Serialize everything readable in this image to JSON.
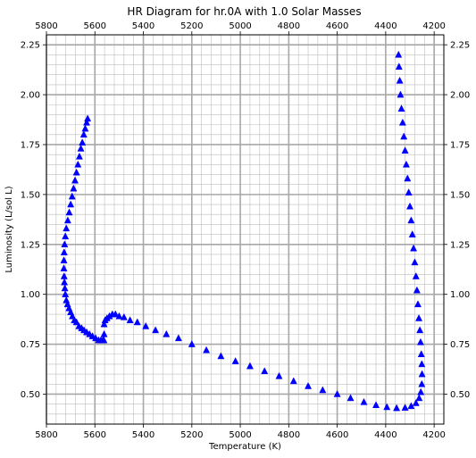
{
  "chart_data": {
    "type": "scatter",
    "title": "HR Diagram for hr.0A with 1.0 Solar Masses",
    "xlabel": "Temperature (K)",
    "ylabel": "Luminosity (L/sol L)",
    "xlim": [
      5800,
      4160
    ],
    "ylim": [
      0.35,
      2.3
    ],
    "x_ticks": [
      5800,
      5600,
      5400,
      5200,
      5000,
      4800,
      4600,
      4400,
      4200
    ],
    "x_tick_labels": [
      "5800",
      "5600",
      "5400",
      "5200",
      "5000",
      "4800",
      "4600",
      "4400",
      "4200"
    ],
    "y_ticks": [
      0.5,
      0.75,
      1.0,
      1.25,
      1.5,
      1.75,
      2.0,
      2.25
    ],
    "y_tick_labels": [
      "0.50",
      "0.75",
      "1.00",
      "1.25",
      "1.50",
      "1.75",
      "2.00",
      "2.25"
    ],
    "grid": true,
    "minor_grid": true,
    "marker": "triangle-up",
    "marker_color": "#0000ff",
    "series": [
      {
        "x": [
          5630,
          5634,
          5640,
          5646,
          5652,
          5658,
          5664,
          5670,
          5676,
          5682,
          5688,
          5694,
          5700,
          5706,
          5712,
          5718,
          5722,
          5725,
          5727,
          5728,
          5728,
          5727,
          5726,
          5724,
          5722,
          5718,
          5713,
          5707,
          5700,
          5693,
          5685,
          5676,
          5666,
          5655,
          5645,
          5634,
          5622,
          5610,
          5597,
          5585,
          5575,
          5567,
          5563,
          5562,
          5562,
          5558,
          5550,
          5540,
          5528,
          5515,
          5500,
          5480,
          5455,
          5425,
          5390,
          5350,
          5305,
          5255,
          5200,
          5140,
          5080,
          5020,
          4960,
          4900,
          4840,
          4780,
          4720,
          4660,
          4600,
          4545,
          4490,
          4440,
          4395,
          4355,
          4320,
          4295,
          4275,
          4262,
          4255,
          4251,
          4250,
          4251,
          4253,
          4256,
          4259,
          4263,
          4267,
          4271,
          4275,
          4280,
          4285,
          4290,
          4295,
          4300,
          4305,
          4310,
          4315,
          4320,
          4325,
          4330,
          4335,
          4339,
          4342,
          4345,
          4347
        ],
        "y": [
          1.88,
          1.86,
          1.83,
          1.8,
          1.76,
          1.73,
          1.69,
          1.65,
          1.61,
          1.57,
          1.53,
          1.49,
          1.45,
          1.41,
          1.37,
          1.33,
          1.29,
          1.25,
          1.21,
          1.17,
          1.13,
          1.09,
          1.06,
          1.03,
          1.0,
          0.97,
          0.95,
          0.93,
          0.91,
          0.89,
          0.87,
          0.86,
          0.84,
          0.83,
          0.82,
          0.81,
          0.8,
          0.79,
          0.78,
          0.77,
          0.77,
          0.77,
          0.77,
          0.8,
          0.85,
          0.87,
          0.88,
          0.89,
          0.9,
          0.9,
          0.89,
          0.885,
          0.87,
          0.86,
          0.84,
          0.82,
          0.8,
          0.78,
          0.75,
          0.72,
          0.69,
          0.665,
          0.64,
          0.615,
          0.59,
          0.565,
          0.54,
          0.52,
          0.5,
          0.48,
          0.46,
          0.445,
          0.435,
          0.43,
          0.432,
          0.44,
          0.455,
          0.48,
          0.51,
          0.55,
          0.6,
          0.65,
          0.7,
          0.76,
          0.82,
          0.88,
          0.95,
          1.02,
          1.09,
          1.16,
          1.23,
          1.3,
          1.37,
          1.44,
          1.51,
          1.58,
          1.65,
          1.72,
          1.79,
          1.86,
          1.93,
          2.0,
          2.07,
          2.14,
          2.2
        ]
      }
    ]
  }
}
